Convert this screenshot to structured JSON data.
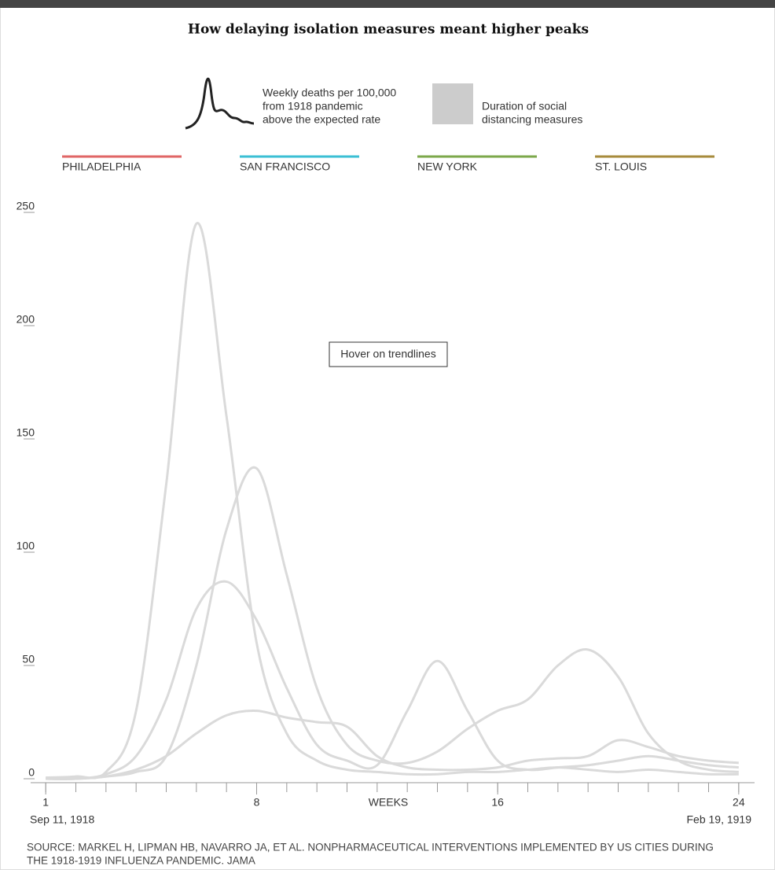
{
  "chart_data": {
    "type": "line",
    "title": "How delaying isolation measures meant higher peaks",
    "key_line_text": [
      "Weekly deaths per 100,000",
      "from 1918 pandemic",
      "above the expected rate"
    ],
    "key_area_text": [
      "Duration of social",
      "distancing measures"
    ],
    "key_area_color": "#cccccc",
    "line_color": "#dadada",
    "hover_note": "Hover on trendlines",
    "x_label": "WEEKS",
    "x_start_date": "Sep 11, 1918",
    "x_end_date": "Feb 19, 1919",
    "x": [
      1,
      2,
      3,
      4,
      5,
      6,
      7,
      8,
      9,
      10,
      11,
      12,
      13,
      14,
      15,
      16,
      17,
      18,
      19,
      20,
      21,
      22,
      23,
      24
    ],
    "series": [
      {
        "name": "PHILADELPHIA",
        "color": "#e06666",
        "values": [
          0.5,
          1,
          3,
          30,
          130,
          245,
          160,
          60,
          20,
          8,
          4,
          3,
          2,
          2,
          3,
          3,
          4,
          5,
          4,
          3,
          4,
          3,
          2,
          2
        ]
      },
      {
        "name": "SAN FRANCISCO",
        "color": "#3bbfd4",
        "values": [
          0,
          0,
          1,
          3,
          10,
          50,
          110,
          137,
          90,
          40,
          15,
          8,
          7,
          12,
          22,
          30,
          35,
          50,
          57,
          45,
          20,
          8,
          4,
          3
        ]
      },
      {
        "name": "NEW YORK",
        "color": "#7ca84b",
        "values": [
          0,
          0,
          2,
          10,
          35,
          75,
          87,
          70,
          40,
          15,
          8,
          6,
          30,
          52,
          30,
          8,
          4,
          5,
          6,
          8,
          10,
          8,
          6,
          5
        ]
      },
      {
        "name": "ST. LOUIS",
        "color": "#a78b3c",
        "values": [
          0,
          0,
          1,
          4,
          10,
          20,
          28,
          30,
          27,
          25,
          23,
          10,
          5,
          4,
          4,
          5,
          8,
          9,
          10,
          17,
          14,
          10,
          8,
          7
        ]
      }
    ],
    "xlim": [
      0.5,
      24.5
    ],
    "xticks": [
      1,
      8,
      16,
      24
    ],
    "minor_xtick_step": 1,
    "ylim": [
      0,
      250
    ],
    "yticks": [
      0,
      50,
      100,
      150,
      200,
      250
    ],
    "source": [
      "SOURCE: MARKEL H, LIPMAN HB, NAVARRO JA, ET AL. NONPHARMACEUTICAL INTERVENTIONS IMPLEMENTED BY US CITIES DURING",
      "THE 1918-1919 INFLUENZA PANDEMIC. JAMA"
    ]
  }
}
